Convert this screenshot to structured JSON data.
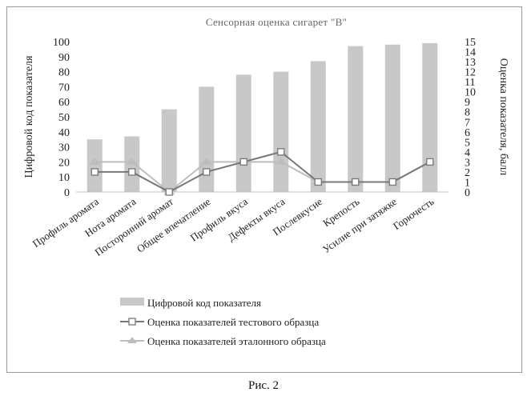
{
  "caption": "Рис. 2",
  "chart_data": {
    "type": "bar",
    "title": "Сенсорная оценка сигарет \"В\"",
    "ylabel_left": "Цифровой код показателя",
    "ylabel_right": "Оценка показателя, балл",
    "ylim_left": [
      0,
      100
    ],
    "ylim_right": [
      0,
      15
    ],
    "yticks_left": [
      0,
      10,
      20,
      30,
      40,
      50,
      60,
      70,
      80,
      90,
      100
    ],
    "yticks_right": [
      0,
      1,
      2,
      3,
      4,
      5,
      6,
      7,
      8,
      9,
      10,
      11,
      12,
      13,
      14,
      15
    ],
    "categories": [
      "Профиль аромата",
      "Нота аромата",
      "Посторонний аромат",
      "Общее впечатление",
      "Профиль вкуса",
      "Дефекты вкуса",
      "Послевкусие",
      "Крепость",
      "Усилие при затяжке",
      "Горючесть"
    ],
    "series": [
      {
        "name": "Цифровой код показателя",
        "kind": "bar",
        "axis": "left",
        "color": "#c8c8c8",
        "values": [
          35,
          37,
          55,
          70,
          78,
          80,
          87,
          97,
          98,
          99
        ]
      },
      {
        "name": "Оценка показателей тестового образца",
        "kind": "line",
        "axis": "right",
        "color": "#777777",
        "marker": "square",
        "values": [
          2,
          2,
          0,
          2,
          3,
          4,
          1,
          1,
          1,
          3
        ]
      },
      {
        "name": "Оценка показателей эталонного образца",
        "kind": "line",
        "axis": "right",
        "color": "#bdbdbd",
        "marker": "triangle",
        "values": [
          3,
          3,
          0,
          3,
          3,
          3,
          1,
          1,
          1,
          3
        ]
      }
    ],
    "legend_position": "bottom"
  }
}
